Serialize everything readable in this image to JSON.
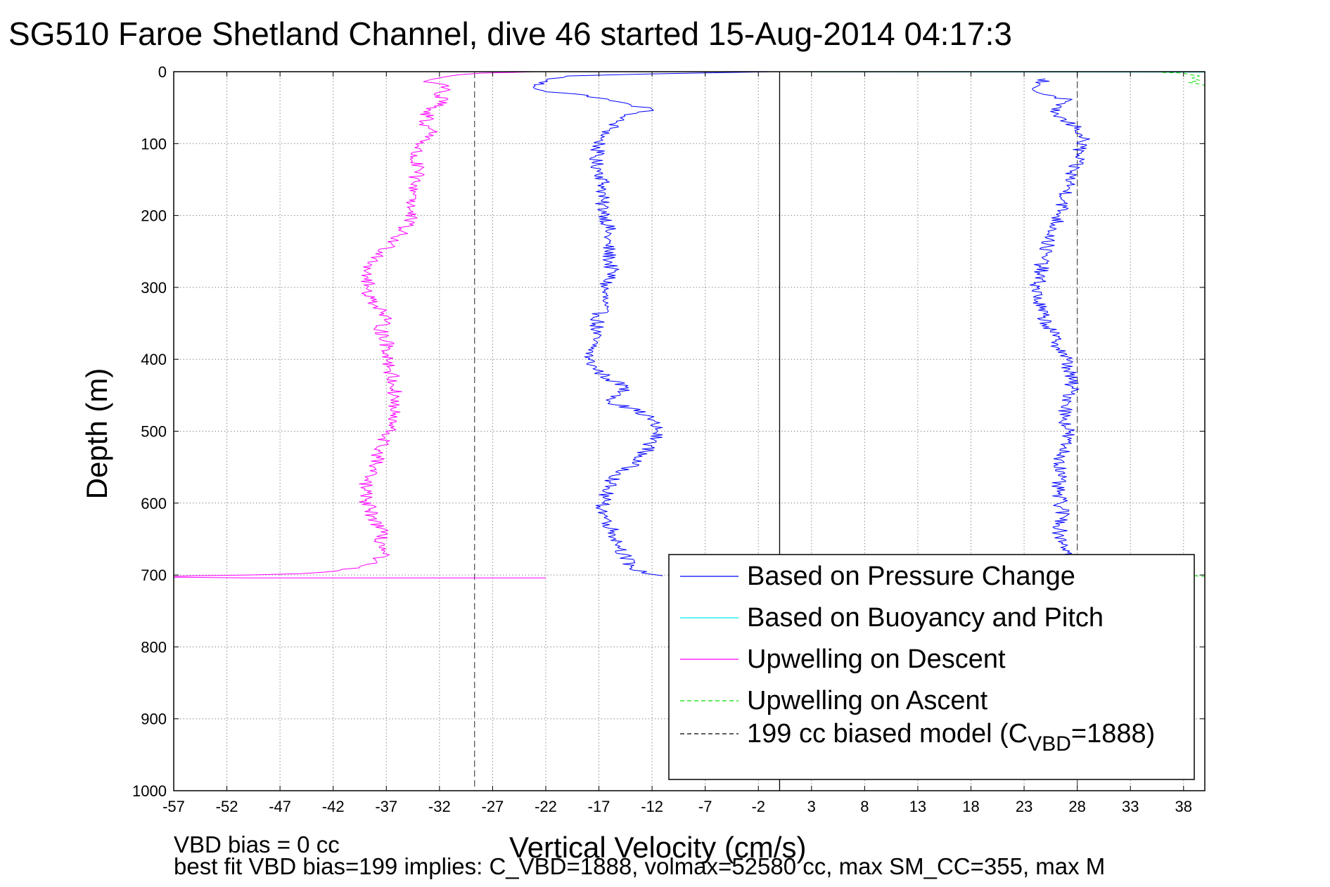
{
  "chart_data": {
    "type": "line",
    "title": "SG510 Faroe Shetland Channel, dive 46 started 15-Aug-2014 04:17:3",
    "xlabel": "Vertical Velocity (cm/s)",
    "ylabel": "Depth (m)",
    "xlim": [
      -57,
      40
    ],
    "ylim": [
      0,
      1000
    ],
    "y_reversed": true,
    "grid": true,
    "legend_placement": "lower-right",
    "x_ticks": [
      -57,
      -52,
      -47,
      -42,
      -37,
      -32,
      -27,
      -22,
      -17,
      -12,
      -7,
      -2,
      3,
      8,
      13,
      18,
      23,
      28,
      33,
      38
    ],
    "y_ticks": [
      0,
      100,
      200,
      300,
      400,
      500,
      600,
      700,
      800,
      900,
      1000
    ],
    "footnotes": [
      "VBD bias = 0 cc",
      "best fit VBD bias=199 implies: C_VBD=1888, volmax=52580 cc, max SM_CC=355, max M"
    ],
    "vertical_lines": [
      {
        "x": 0,
        "style": "solid",
        "color": "#000000"
      },
      {
        "x": -28.7,
        "style": "dashed",
        "color": "#555555"
      },
      {
        "x": 28,
        "style": "dashed",
        "color": "#555555"
      }
    ],
    "legend": [
      {
        "label": "Based on Pressure Change",
        "color": "#0000ff",
        "dash": "solid"
      },
      {
        "label": "Based on Buoyancy and Pitch",
        "color": "#00e5ee",
        "dash": "solid"
      },
      {
        "label": "Upwelling on Descent",
        "color": "#ff00ff",
        "dash": "solid"
      },
      {
        "label": "Upwelling on Ascent",
        "color": "#00dd00",
        "dash": "dashed"
      },
      {
        "label": "199 cc biased model (C",
        "sub": "VBD",
        "tail": "=1888)",
        "color": "#000000",
        "dash": "dashed"
      }
    ],
    "series": [
      {
        "name": "Based on Pressure Change",
        "color": "#0000ff",
        "dash": "solid",
        "segments": [
          [
            [
              -0.5,
              0
            ],
            [
              -12,
              3
            ],
            [
              -20,
              6
            ],
            [
              -22,
              12
            ],
            [
              -23,
              20
            ],
            [
              -22,
              28
            ],
            [
              -18,
              33
            ],
            [
              -16,
              40
            ],
            [
              -14,
              46
            ],
            [
              -12,
              52
            ],
            [
              -13.5,
              58
            ],
            [
              -15,
              64
            ],
            [
              -15.5,
              72
            ],
            [
              -16,
              82
            ],
            [
              -16.8,
              92
            ],
            [
              -17,
              102
            ],
            [
              -17.2,
              112
            ],
            [
              -17.4,
              125
            ],
            [
              -16.8,
              140
            ],
            [
              -16.5,
              160
            ],
            [
              -16.8,
              180
            ],
            [
              -16.3,
              200
            ],
            [
              -16.1,
              220
            ],
            [
              -16.2,
              240
            ],
            [
              -16,
              260
            ],
            [
              -15.8,
              280
            ],
            [
              -16.5,
              300
            ],
            [
              -16.5,
              320
            ],
            [
              -17,
              340
            ],
            [
              -17.3,
              360
            ],
            [
              -17.6,
              380
            ],
            [
              -18,
              400
            ],
            [
              -17.2,
              415
            ],
            [
              -16,
              428
            ],
            [
              -14.5,
              438
            ],
            [
              -15,
              450
            ],
            [
              -16,
              460
            ],
            [
              -14,
              468
            ],
            [
              -12.5,
              478
            ],
            [
              -11.8,
              490
            ],
            [
              -11.5,
              500
            ],
            [
              -11.8,
              512
            ],
            [
              -12.6,
              528
            ],
            [
              -13.8,
              545
            ],
            [
              -15,
              560
            ],
            [
              -16,
              572
            ],
            [
              -16.3,
              585
            ],
            [
              -16.7,
              600
            ],
            [
              -16.5,
              615
            ],
            [
              -16,
              630
            ],
            [
              -15.5,
              645
            ],
            [
              -15,
              660
            ],
            [
              -14.5,
              675
            ],
            [
              -14,
              688
            ],
            [
              -13,
              697
            ],
            [
              -11,
              701
            ]
          ],
          [
            [
              25,
              10
            ],
            [
              24.5,
              18
            ],
            [
              23.8,
              25
            ],
            [
              24.5,
              30
            ],
            [
              26,
              35
            ],
            [
              27.3,
              40
            ],
            [
              26,
              46
            ],
            [
              25.6,
              52
            ],
            [
              26,
              60
            ],
            [
              27,
              70
            ],
            [
              28.2,
              80
            ],
            [
              28.5,
              92
            ],
            [
              28.3,
              105
            ],
            [
              28,
              120
            ],
            [
              27.5,
              140
            ],
            [
              27.2,
              160
            ],
            [
              26.8,
              180
            ],
            [
              26.3,
              200
            ],
            [
              25.8,
              220
            ],
            [
              25.2,
              240
            ],
            [
              24.8,
              260
            ],
            [
              24.5,
              280
            ],
            [
              24.2,
              300
            ],
            [
              24.3,
              320
            ],
            [
              24.8,
              340
            ],
            [
              25.5,
              360
            ],
            [
              26.2,
              380
            ],
            [
              27,
              400
            ],
            [
              27.3,
              420
            ],
            [
              27.5,
              440
            ],
            [
              27.2,
              460
            ],
            [
              26.8,
              480
            ],
            [
              27.2,
              500
            ],
            [
              26.8,
              520
            ],
            [
              26.5,
              540
            ],
            [
              26.3,
              560
            ],
            [
              26.1,
              580
            ],
            [
              26.4,
              600
            ],
            [
              26.7,
              620
            ],
            [
              26.3,
              640
            ],
            [
              26.9,
              660
            ],
            [
              27.3,
              675
            ]
          ]
        ]
      },
      {
        "name": "Based on Buoyancy and Pitch",
        "color": "#00e5ee",
        "dash": "solid",
        "segments": [
          [
            [
              -0.5,
              0
            ],
            [
              6,
              0.4
            ],
            [
              20,
              0.5
            ],
            [
              38,
              0.6
            ],
            [
              40,
              0.6
            ]
          ]
        ]
      },
      {
        "name": "Upwelling on Descent",
        "color": "#ff00ff",
        "dash": "solid",
        "segments": [
          [
            [
              -23,
              0
            ],
            [
              -25,
              1
            ],
            [
              -28,
              2
            ],
            [
              -30,
              4
            ],
            [
              -31,
              6
            ],
            [
              -32.5,
              10
            ],
            [
              -33.5,
              14
            ],
            [
              -31.5,
              18
            ],
            [
              -31,
              25
            ],
            [
              -32.5,
              32
            ],
            [
              -31.5,
              40
            ],
            [
              -32.5,
              48
            ],
            [
              -33.5,
              56
            ],
            [
              -32.8,
              64
            ],
            [
              -33.5,
              72
            ],
            [
              -32.6,
              82
            ],
            [
              -33,
              92
            ],
            [
              -34,
              104
            ],
            [
              -34.5,
              120
            ],
            [
              -34,
              138
            ],
            [
              -34.5,
              155
            ],
            [
              -34.2,
              172
            ],
            [
              -34.8,
              190
            ],
            [
              -34.8,
              205
            ],
            [
              -35.5,
              222
            ],
            [
              -36.5,
              238
            ],
            [
              -37.5,
              255
            ],
            [
              -38.5,
              270
            ],
            [
              -38.8,
              285
            ],
            [
              -38.8,
              300
            ],
            [
              -38.5,
              315
            ],
            [
              -37.5,
              330
            ],
            [
              -37.2,
              345
            ],
            [
              -37.5,
              360
            ],
            [
              -37,
              375
            ],
            [
              -36.8,
              395
            ],
            [
              -36.6,
              415
            ],
            [
              -36.3,
              435
            ],
            [
              -36.2,
              455
            ],
            [
              -36.4,
              475
            ],
            [
              -36.6,
              495
            ],
            [
              -37.5,
              520
            ],
            [
              -38,
              545
            ],
            [
              -38.8,
              565
            ],
            [
              -39,
              580
            ],
            [
              -39,
              595
            ],
            [
              -38.5,
              610
            ],
            [
              -38,
              625
            ],
            [
              -37.5,
              640
            ],
            [
              -37.5,
              655
            ],
            [
              -37.3,
              670
            ],
            [
              -38,
              680
            ],
            [
              -39.5,
              688
            ],
            [
              -41.5,
              694
            ],
            [
              -45,
              698
            ],
            [
              -50,
              700
            ],
            [
              -55,
              701
            ],
            [
              -57,
              702
            ]
          ],
          [
            [
              -57,
              703
            ],
            [
              -50,
              704
            ],
            [
              -40,
              704
            ],
            [
              -30,
              704
            ],
            [
              -22,
              704
            ]
          ]
        ]
      },
      {
        "name": "Upwelling on Ascent",
        "color": "#00dd00",
        "dash": "dashed",
        "segments": [
          [
            [
              36,
              1
            ],
            [
              38,
              2
            ],
            [
              38.5,
              4
            ],
            [
              39.5,
              6
            ],
            [
              38.8,
              9
            ],
            [
              39.5,
              12
            ],
            [
              38.5,
              15
            ],
            [
              39.8,
              18
            ],
            [
              40,
              20
            ]
          ],
          [
            [
              39,
              701
            ],
            [
              40,
              702
            ]
          ]
        ]
      }
    ]
  }
}
